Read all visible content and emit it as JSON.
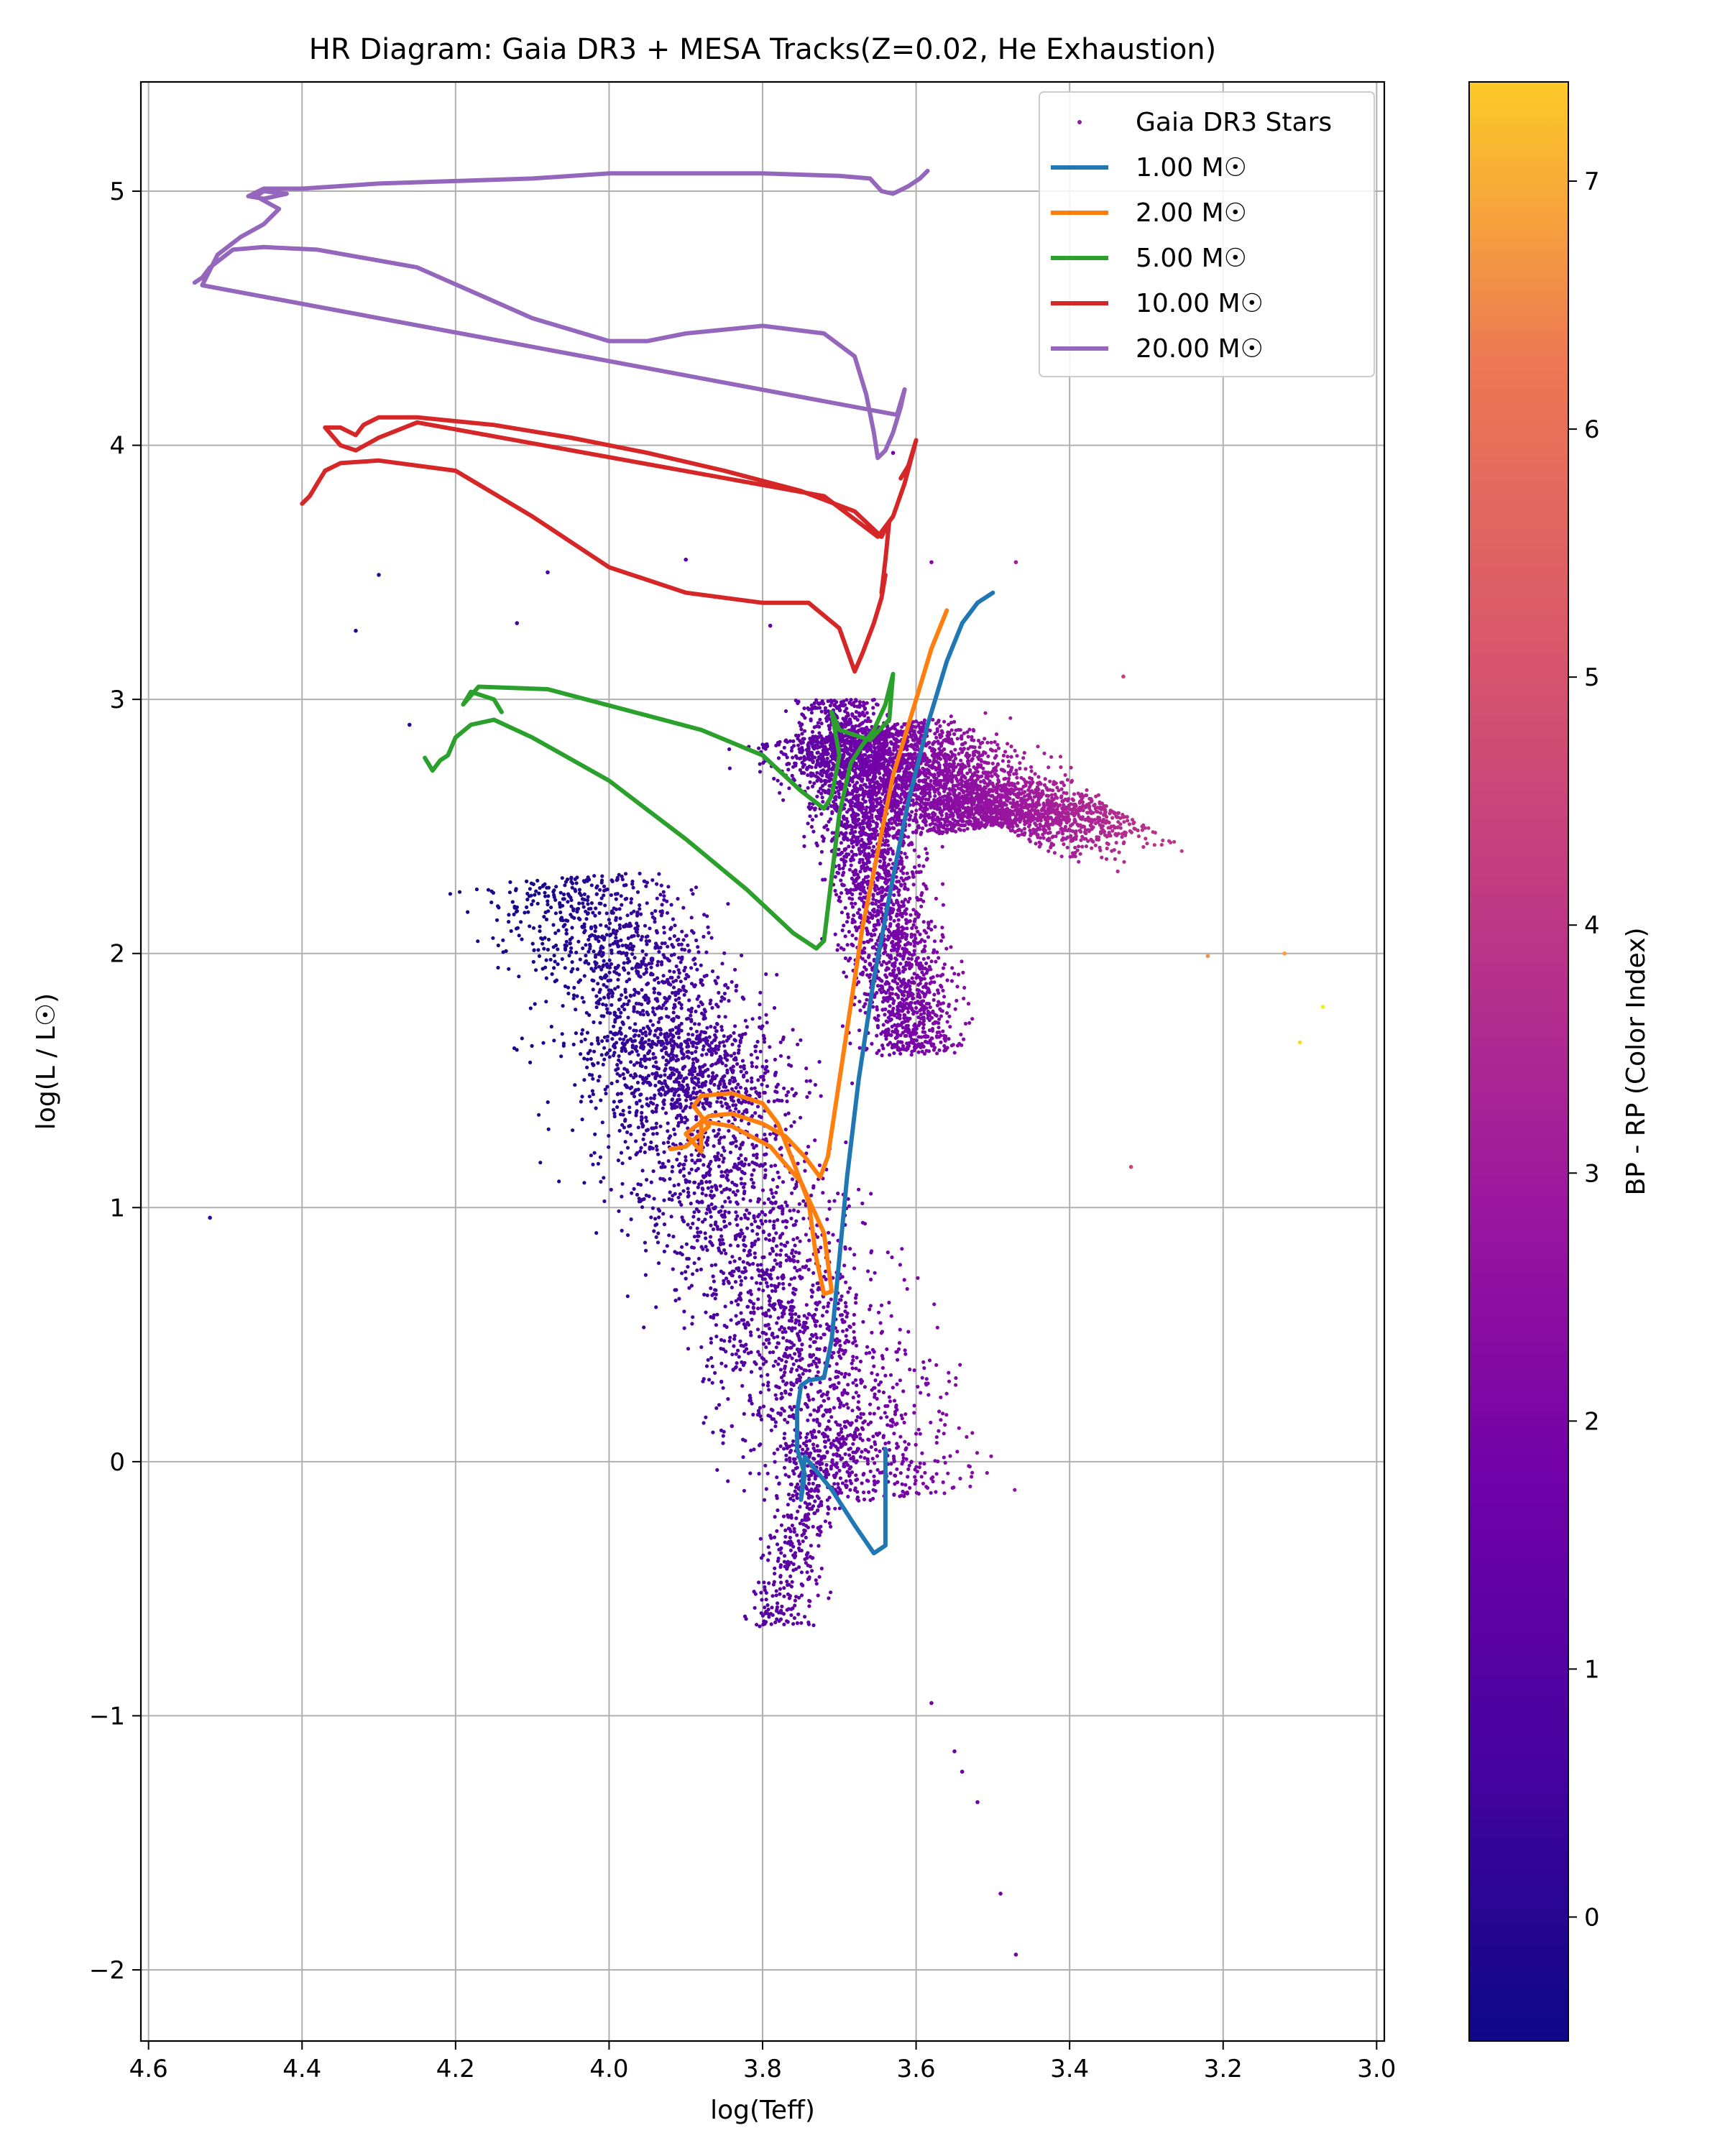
{
  "chart_data": {
    "type": "scatter",
    "title": "HR Diagram: Gaia DR3 + MESA Tracks(Z=0.02, He Exhaustion)",
    "xlabel": "log(Teff)",
    "ylabel": "log(L / L☉)",
    "xlim": [
      4.61,
      2.99
    ],
    "ylim": [
      -2.28,
      5.43
    ],
    "x_inverted": true,
    "grid": true,
    "legend_position": "top-right",
    "x_ticks": [
      {
        "value": 4.6,
        "label": "4.6"
      },
      {
        "value": 4.4,
        "label": "4.4"
      },
      {
        "value": 4.2,
        "label": "4.2"
      },
      {
        "value": 4.0,
        "label": "4.0"
      },
      {
        "value": 3.8,
        "label": "3.8"
      },
      {
        "value": 3.6,
        "label": "3.6"
      },
      {
        "value": 3.4,
        "label": "3.4"
      },
      {
        "value": 3.2,
        "label": "3.2"
      },
      {
        "value": 3.0,
        "label": "3.0"
      }
    ],
    "y_ticks": [
      {
        "value": -2,
        "label": "−2"
      },
      {
        "value": -1,
        "label": "−1"
      },
      {
        "value": 0,
        "label": "0"
      },
      {
        "value": 1,
        "label": "1"
      },
      {
        "value": 2,
        "label": "2"
      },
      {
        "value": 3,
        "label": "3"
      },
      {
        "value": 4,
        "label": "4"
      },
      {
        "value": 5,
        "label": "5"
      }
    ],
    "colorbar": {
      "label": "BP - RP (Color Index)",
      "range": [
        -0.5,
        7.4
      ],
      "colormap": "plasma",
      "ticks": [
        {
          "value": 0,
          "label": "0"
        },
        {
          "value": 1,
          "label": "1"
        },
        {
          "value": 2,
          "label": "2"
        },
        {
          "value": 3,
          "label": "3"
        },
        {
          "value": 4,
          "label": "4"
        },
        {
          "value": 5,
          "label": "5"
        },
        {
          "value": 6,
          "label": "6"
        },
        {
          "value": 7,
          "label": "7"
        }
      ]
    },
    "scatter": {
      "name": "Gaia DR3 Stars",
      "points": [
        [
          4.52,
          0.96,
          0.0
        ],
        [
          3.32,
          1.16,
          3.4
        ],
        [
          3.1,
          1.65,
          6.8
        ],
        [
          3.07,
          1.79,
          7.2
        ],
        [
          3.12,
          2.0,
          5.6
        ],
        [
          3.22,
          1.99,
          5.3
        ],
        [
          3.47,
          -1.94,
          1.3
        ],
        [
          3.49,
          -1.7,
          1.3
        ],
        [
          3.52,
          -1.34,
          1.3
        ],
        [
          3.55,
          -1.14,
          1.2
        ],
        [
          3.58,
          -0.95,
          1.2
        ],
        [
          3.54,
          -1.22,
          1.2
        ],
        [
          4.33,
          3.27,
          0.0
        ],
        [
          4.3,
          3.49,
          0.0
        ],
        [
          4.26,
          2.9,
          0.0
        ],
        [
          3.84,
          0.14,
          0.8
        ],
        [
          3.63,
          3.97,
          1.3
        ],
        [
          3.58,
          3.54,
          1.5
        ],
        [
          3.47,
          3.54,
          2.3
        ],
        [
          4.08,
          3.5,
          0.4
        ],
        [
          4.12,
          3.3,
          0.4
        ],
        [
          3.9,
          3.55,
          0.6
        ],
        [
          3.79,
          3.29,
          0.9
        ],
        [
          3.33,
          3.09,
          3.3
        ]
      ],
      "clusters": [
        {
          "type": "main_sequence",
          "n": 2400,
          "x0": 3.95,
          "y0": 1.7,
          "dx": -0.3,
          "dy": -1.85,
          "w_along": 1.0,
          "w_across": 0.1
        },
        {
          "type": "upper_main_sequence",
          "n": 1300,
          "x0": 4.05,
          "y0": 2.3,
          "dx": -0.2,
          "dy": -0.9,
          "w_along": 1.0,
          "w_across": 0.09
        },
        {
          "type": "red_giant_branch",
          "n": 2200,
          "x0": 3.6,
          "y0": 1.6,
          "dx": 0.1,
          "dy": 1.4,
          "w_along": 1.0,
          "w_across": 0.045
        },
        {
          "type": "giant_clump",
          "n": 2600,
          "x0": 3.5,
          "y0": 2.5,
          "dx": 0.18,
          "dy": 0.38,
          "w_along": 1.0,
          "w_across": 0.1
        },
        {
          "type": "cool_giants",
          "n": 700,
          "x0": 3.35,
          "y0": 2.58,
          "dx": 0.14,
          "dy": -0.08,
          "w_along": 1.0,
          "w_across": 0.12
        },
        {
          "type": "lower_main_sequence",
          "n": 380,
          "x0": 3.72,
          "y0": 0.1,
          "dx": 0.06,
          "dy": -0.75,
          "w_along": 1.0,
          "w_across": 0.03
        }
      ]
    },
    "series": [
      {
        "name": "1.00 M☉",
        "color": "#1f77b4",
        "points": [
          [
            3.64,
            0.05
          ],
          [
            3.64,
            -0.2
          ],
          [
            3.64,
            -0.33
          ],
          [
            3.655,
            -0.36
          ],
          [
            3.68,
            -0.25
          ],
          [
            3.71,
            -0.11
          ],
          [
            3.745,
            0.02
          ],
          [
            3.75,
            -0.15
          ],
          [
            3.745,
            -0.05
          ],
          [
            3.755,
            0.05
          ],
          [
            3.755,
            0.2
          ],
          [
            3.75,
            0.3
          ],
          [
            3.74,
            0.32
          ],
          [
            3.72,
            0.33
          ],
          [
            3.71,
            0.48
          ],
          [
            3.7,
            0.8
          ],
          [
            3.69,
            1.12
          ],
          [
            3.675,
            1.5
          ],
          [
            3.655,
            1.9
          ],
          [
            3.63,
            2.3
          ],
          [
            3.61,
            2.6
          ],
          [
            3.585,
            2.9
          ],
          [
            3.56,
            3.15
          ],
          [
            3.54,
            3.3
          ],
          [
            3.52,
            3.38
          ],
          [
            3.5,
            3.42
          ]
        ]
      },
      {
        "name": "2.00 M☉",
        "color": "#ff7f0e",
        "points": [
          [
            3.92,
            1.23
          ],
          [
            3.9,
            1.24
          ],
          [
            3.87,
            1.32
          ],
          [
            3.89,
            1.4
          ],
          [
            3.88,
            1.44
          ],
          [
            3.84,
            1.45
          ],
          [
            3.8,
            1.41
          ],
          [
            3.78,
            1.33
          ],
          [
            3.76,
            1.18
          ],
          [
            3.74,
            1.02
          ],
          [
            3.73,
            0.8
          ],
          [
            3.72,
            0.66
          ],
          [
            3.71,
            0.67
          ],
          [
            3.72,
            0.9
          ],
          [
            3.75,
            1.1
          ],
          [
            3.79,
            1.24
          ],
          [
            3.84,
            1.32
          ],
          [
            3.88,
            1.34
          ],
          [
            3.88,
            1.22
          ],
          [
            3.9,
            1.29
          ],
          [
            3.87,
            1.36
          ],
          [
            3.84,
            1.37
          ],
          [
            3.8,
            1.33
          ],
          [
            3.77,
            1.28
          ],
          [
            3.745,
            1.2
          ],
          [
            3.725,
            1.12
          ],
          [
            3.715,
            1.2
          ],
          [
            3.7,
            1.5
          ],
          [
            3.685,
            1.8
          ],
          [
            3.67,
            2.1
          ],
          [
            3.65,
            2.4
          ],
          [
            3.63,
            2.7
          ],
          [
            3.6,
            3.0
          ],
          [
            3.58,
            3.2
          ],
          [
            3.56,
            3.35
          ]
        ]
      },
      {
        "name": "5.00 M☉",
        "color": "#2ca02c",
        "points": [
          [
            4.24,
            2.77
          ],
          [
            4.23,
            2.72
          ],
          [
            4.22,
            2.76
          ],
          [
            4.21,
            2.78
          ],
          [
            4.2,
            2.85
          ],
          [
            4.18,
            2.9
          ],
          [
            4.15,
            2.92
          ],
          [
            4.1,
            2.85
          ],
          [
            4.0,
            2.68
          ],
          [
            3.9,
            2.45
          ],
          [
            3.82,
            2.25
          ],
          [
            3.76,
            2.08
          ],
          [
            3.73,
            2.02
          ],
          [
            3.72,
            2.05
          ],
          [
            3.71,
            2.3
          ],
          [
            3.7,
            2.55
          ],
          [
            3.685,
            2.75
          ],
          [
            3.67,
            2.82
          ],
          [
            3.655,
            2.88
          ],
          [
            3.64,
            2.98
          ],
          [
            3.63,
            3.1
          ],
          [
            3.635,
            2.92
          ],
          [
            3.66,
            2.84
          ],
          [
            3.68,
            2.86
          ],
          [
            3.7,
            2.88
          ],
          [
            3.71,
            2.95
          ],
          [
            3.7,
            2.78
          ],
          [
            3.71,
            2.62
          ],
          [
            3.72,
            2.57
          ],
          [
            3.75,
            2.64
          ],
          [
            3.8,
            2.78
          ],
          [
            3.88,
            2.88
          ],
          [
            3.98,
            2.96
          ],
          [
            4.08,
            3.04
          ],
          [
            4.17,
            3.05
          ],
          [
            4.19,
            2.98
          ],
          [
            4.18,
            3.03
          ],
          [
            4.15,
            3.0
          ],
          [
            4.14,
            2.95
          ]
        ]
      },
      {
        "name": "10.00 M☉",
        "color": "#d62728",
        "points": [
          [
            4.4,
            3.77
          ],
          [
            4.39,
            3.8
          ],
          [
            4.38,
            3.85
          ],
          [
            4.37,
            3.9
          ],
          [
            4.35,
            3.93
          ],
          [
            4.3,
            3.94
          ],
          [
            4.2,
            3.9
          ],
          [
            4.1,
            3.72
          ],
          [
            4.0,
            3.52
          ],
          [
            3.9,
            3.42
          ],
          [
            3.8,
            3.38
          ],
          [
            3.74,
            3.38
          ],
          [
            3.7,
            3.28
          ],
          [
            3.68,
            3.11
          ],
          [
            3.67,
            3.18
          ],
          [
            3.655,
            3.3
          ],
          [
            3.645,
            3.4
          ],
          [
            3.64,
            3.49
          ],
          [
            3.645,
            3.42
          ],
          [
            3.64,
            3.55
          ],
          [
            3.635,
            3.7
          ],
          [
            3.645,
            3.64
          ],
          [
            3.68,
            3.74
          ],
          [
            3.75,
            3.82
          ],
          [
            3.85,
            3.9
          ],
          [
            3.95,
            3.97
          ],
          [
            4.05,
            4.03
          ],
          [
            4.15,
            4.08
          ],
          [
            4.25,
            4.11
          ],
          [
            4.3,
            4.11
          ],
          [
            4.32,
            4.08
          ],
          [
            4.33,
            4.04
          ],
          [
            4.35,
            4.07
          ],
          [
            4.37,
            4.07
          ],
          [
            4.35,
            4.0
          ],
          [
            4.33,
            3.98
          ],
          [
            4.3,
            4.03
          ],
          [
            4.25,
            4.09
          ],
          [
            3.72,
            3.8
          ],
          [
            3.65,
            3.64
          ],
          [
            3.63,
            3.72
          ],
          [
            3.615,
            3.85
          ],
          [
            3.6,
            4.02
          ],
          [
            3.61,
            3.92
          ],
          [
            3.62,
            3.87
          ]
        ]
      },
      {
        "name": "20.00 M☉",
        "color": "#9467bd",
        "points": [
          [
            4.54,
            4.64
          ],
          [
            4.53,
            4.66
          ],
          [
            4.52,
            4.7
          ],
          [
            4.49,
            4.77
          ],
          [
            4.45,
            4.78
          ],
          [
            4.38,
            4.77
          ],
          [
            4.25,
            4.7
          ],
          [
            4.1,
            4.5
          ],
          [
            4.0,
            4.41
          ],
          [
            3.95,
            4.41
          ],
          [
            3.9,
            4.44
          ],
          [
            3.8,
            4.47
          ],
          [
            3.72,
            4.44
          ],
          [
            3.68,
            4.35
          ],
          [
            3.665,
            4.2
          ],
          [
            3.655,
            4.05
          ],
          [
            3.65,
            3.95
          ],
          [
            3.64,
            3.98
          ],
          [
            3.63,
            4.05
          ],
          [
            3.62,
            4.15
          ],
          [
            3.615,
            4.22
          ],
          [
            3.625,
            4.12
          ],
          [
            4.53,
            4.63
          ],
          [
            4.51,
            4.75
          ],
          [
            4.48,
            4.82
          ],
          [
            4.45,
            4.87
          ],
          [
            4.43,
            4.93
          ],
          [
            4.46,
            4.98
          ],
          [
            4.45,
            5.0
          ],
          [
            4.42,
            4.99
          ],
          [
            4.45,
            4.97
          ],
          [
            4.47,
            4.98
          ],
          [
            4.45,
            5.01
          ],
          [
            4.4,
            5.01
          ],
          [
            4.3,
            5.03
          ],
          [
            4.2,
            5.04
          ],
          [
            4.1,
            5.05
          ],
          [
            4.0,
            5.07
          ],
          [
            3.9,
            5.07
          ],
          [
            3.8,
            5.07
          ],
          [
            3.7,
            5.06
          ],
          [
            3.66,
            5.05
          ],
          [
            3.645,
            5.0
          ],
          [
            3.63,
            4.99
          ],
          [
            3.61,
            5.02
          ],
          [
            3.595,
            5.05
          ],
          [
            3.585,
            5.08
          ]
        ]
      }
    ]
  }
}
